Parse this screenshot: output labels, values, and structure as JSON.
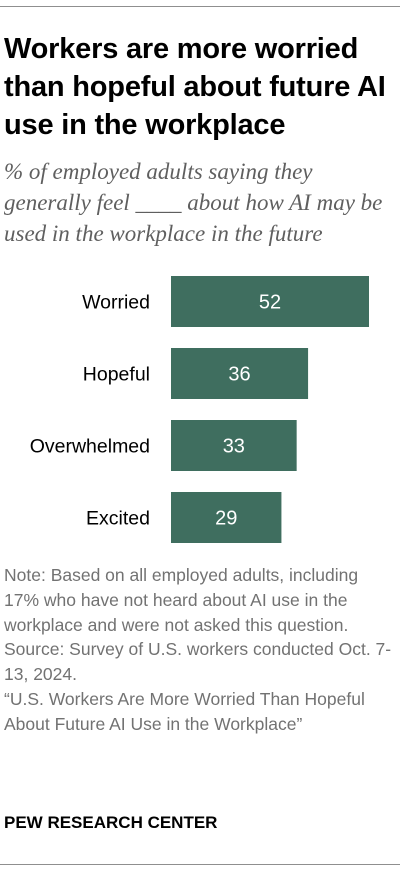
{
  "title": "Workers are more worried than hopeful about future AI use in the workplace",
  "subtitle": "% of employed adults saying they generally feel ____ about how AI may be used in the workplace in the future",
  "chart_data": {
    "type": "bar",
    "orientation": "horizontal",
    "categories": [
      "Worried",
      "Hopeful",
      "Overwhelmed",
      "Excited"
    ],
    "values": [
      52,
      36,
      33,
      29
    ],
    "bar_color": "#3f6e5f",
    "value_label_color": "#ffffff",
    "xlim": [
      0,
      52
    ]
  },
  "notes": [
    "Note: Based on all employed adults, including 17% who have not heard about AI use in the workplace and were not asked this question.",
    "Source: Survey of U.S. workers conducted Oct. 7-13, 2024.",
    "“U.S. Workers Are More Worried Than Hopeful About Future AI Use in the Workplace”"
  ],
  "brand": "PEW RESEARCH CENTER"
}
